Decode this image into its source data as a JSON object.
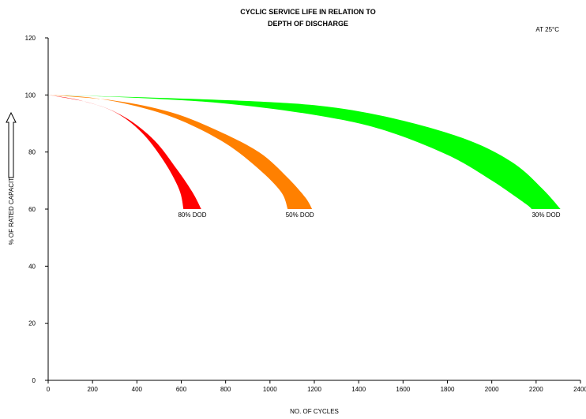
{
  "chart_data": {
    "type": "area",
    "title_lines": [
      "CYCLIC SERVICE LIFE IN RELATION TO",
      "DEPTH OF DISCHARGE"
    ],
    "annotation": "AT 25°C",
    "xlabel": "NO. OF CYCLES",
    "ylabel": "% OF RATED CAPACITY",
    "xlim": [
      0,
      2400
    ],
    "ylim": [
      0,
      120
    ],
    "xticks": [
      0,
      200,
      400,
      600,
      800,
      1000,
      1200,
      1400,
      1600,
      1800,
      2000,
      2200,
      2400
    ],
    "yticks": [
      0,
      20,
      40,
      60,
      80,
      100,
      120
    ],
    "grid": false,
    "series": [
      {
        "label": "80% DOD",
        "color": "#ff0000",
        "upper": [
          [
            0,
            100
          ],
          [
            150,
            98
          ],
          [
            300,
            94
          ],
          [
            420,
            87
          ],
          [
            520,
            77
          ],
          [
            590,
            67
          ],
          [
            610,
            60
          ]
        ],
        "lower": [
          [
            0,
            100
          ],
          [
            200,
            97
          ],
          [
            350,
            92
          ],
          [
            480,
            84
          ],
          [
            580,
            74
          ],
          [
            650,
            66
          ],
          [
            690,
            60
          ]
        ]
      },
      {
        "label": "50% DOD",
        "color": "#ff8000",
        "upper": [
          [
            0,
            100
          ],
          [
            200,
            99
          ],
          [
            400,
            96
          ],
          [
            600,
            91
          ],
          [
            800,
            83
          ],
          [
            950,
            74
          ],
          [
            1050,
            66
          ],
          [
            1080,
            60
          ]
        ],
        "lower": [
          [
            0,
            100
          ],
          [
            300,
            98
          ],
          [
            550,
            94
          ],
          [
            750,
            88
          ],
          [
            950,
            80
          ],
          [
            1080,
            71
          ],
          [
            1160,
            64
          ],
          [
            1190,
            60
          ]
        ]
      },
      {
        "label": "30% DOD",
        "color": "#00ff00",
        "upper": [
          [
            0,
            100
          ],
          [
            400,
            99
          ],
          [
            800,
            97
          ],
          [
            1200,
            93
          ],
          [
            1500,
            88
          ],
          [
            1800,
            79
          ],
          [
            2000,
            70
          ],
          [
            2150,
            62
          ],
          [
            2180,
            60
          ]
        ],
        "lower": [
          [
            0,
            100
          ],
          [
            500,
            99
          ],
          [
            1000,
            97.5
          ],
          [
            1300,
            95.5
          ],
          [
            1600,
            91
          ],
          [
            1900,
            84
          ],
          [
            2100,
            76
          ],
          [
            2230,
            67
          ],
          [
            2310,
            60
          ]
        ]
      }
    ]
  }
}
